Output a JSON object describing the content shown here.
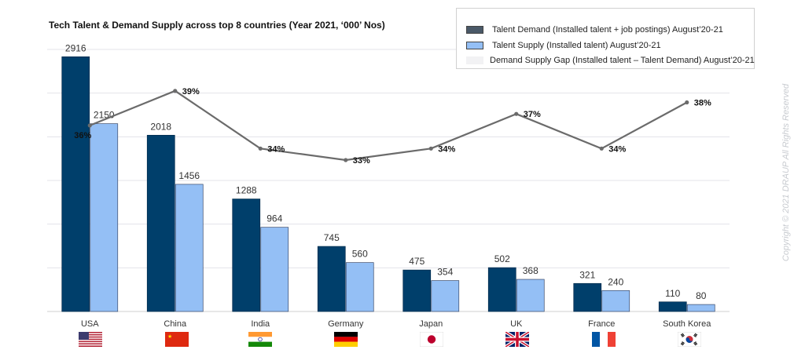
{
  "chart_data": {
    "type": "bar",
    "title": "Tech Talent & Demand Supply across top 8 countries (Year 2021, ‘000’ Nos)",
    "categories": [
      "USA",
      "China",
      "India",
      "Germany",
      "Japan",
      "UK",
      "France",
      "South Korea"
    ],
    "series": [
      {
        "name": "Talent Demand (Installed talent + job postings) August’20-21",
        "color": "#003f6b",
        "values": [
          2916,
          2018,
          1288,
          745,
          475,
          502,
          321,
          110
        ]
      },
      {
        "name": "Talent Supply (Installed talent) August’20-21",
        "color": "#94bff5",
        "values": [
          2150,
          1456,
          964,
          560,
          354,
          368,
          240,
          80
        ]
      }
    ],
    "line_series": {
      "name": "Demand Supply Gap (Installed talent – Talent Demand) August’20-21",
      "color": "#6b6b6b",
      "values": [
        36,
        39,
        34,
        33,
        34,
        37,
        34,
        38
      ],
      "labels": [
        "36%",
        "39%",
        "34%",
        "33%",
        "34%",
        "37%",
        "34%",
        "38%"
      ]
    },
    "ylim": [
      0,
      3000
    ],
    "xlabel": "",
    "ylabel": "",
    "grid": true,
    "legend_position": "top-right"
  },
  "legend": {
    "items": [
      {
        "label": "Talent Demand (Installed talent + job postings) August’20-21",
        "color": "#4a5968"
      },
      {
        "label": "Talent Supply (Installed talent) August’20-21",
        "color": "#94bff5"
      },
      {
        "label": "Demand Supply Gap (Installed talent – Talent Demand) August’20-21",
        "color": "#f2f2f4"
      }
    ]
  },
  "copyright": "Copyright © 2021 DRAUP  All Rights Reserved"
}
